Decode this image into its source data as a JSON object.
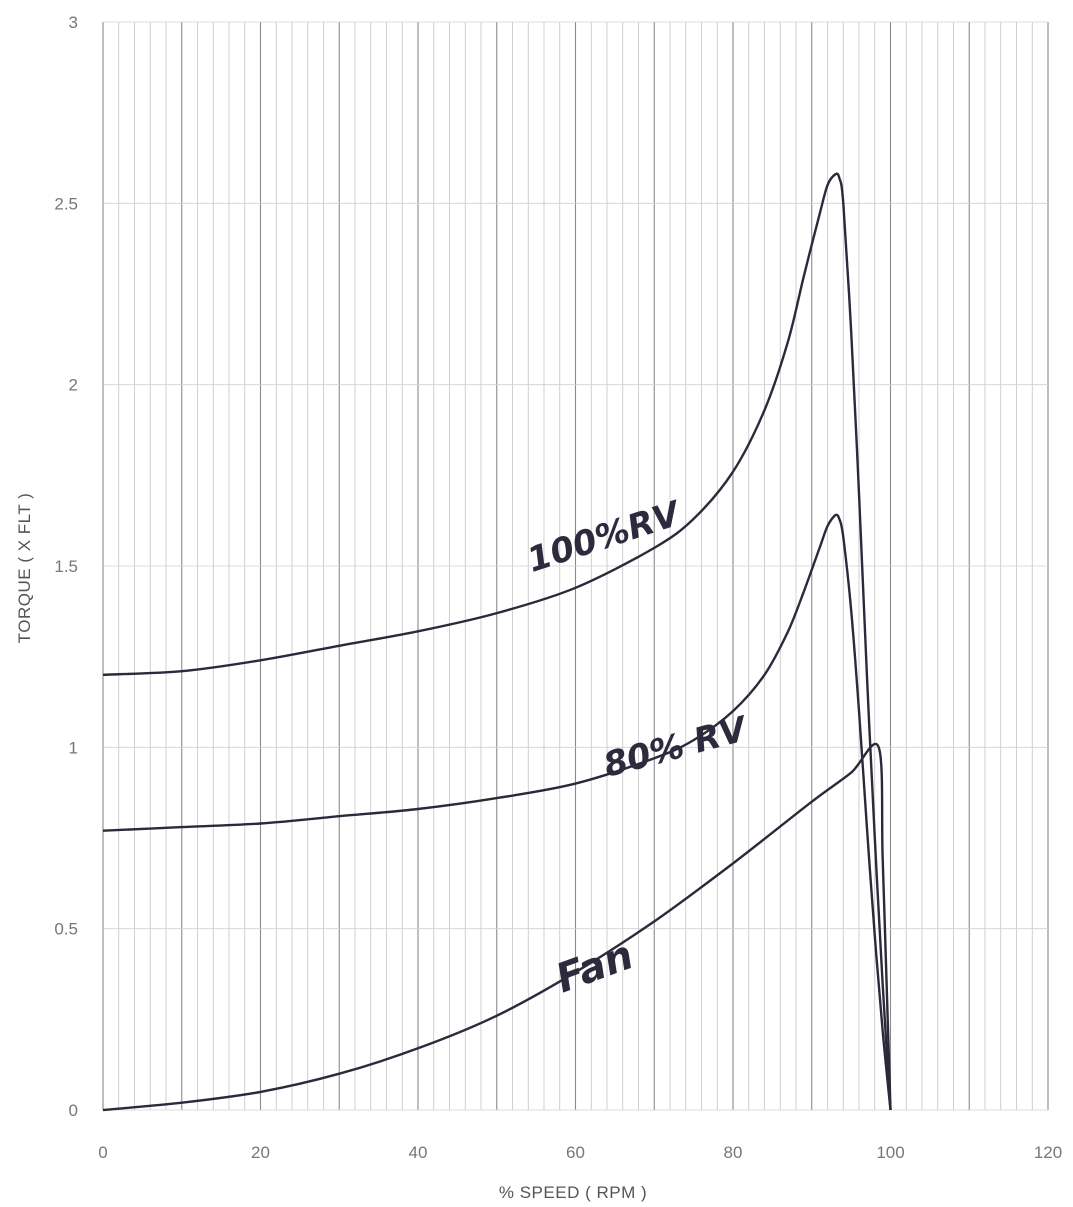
{
  "chart_data": {
    "type": "line",
    "title": "",
    "xlabel": "% SPEED ( RPM )",
    "ylabel": "TORQUE ( X FLT )",
    "xlim": [
      0,
      120
    ],
    "ylim": [
      0,
      3
    ],
    "x_ticks": [
      "0",
      "20",
      "40",
      "60",
      "80",
      "100",
      "120"
    ],
    "y_ticks": [
      "0",
      "0.5",
      "1",
      "1.5",
      "2",
      "2.5",
      "3"
    ],
    "grid": true,
    "series": [
      {
        "name": "100%RV",
        "color": "#2a2a3a",
        "x": [
          0,
          10,
          20,
          30,
          40,
          50,
          60,
          70,
          75,
          80,
          84,
          87,
          89,
          91,
          92,
          93,
          93.5,
          94,
          95,
          96,
          97,
          98,
          99,
          100
        ],
        "y": [
          1.2,
          1.21,
          1.24,
          1.28,
          1.32,
          1.37,
          1.44,
          1.55,
          1.63,
          1.76,
          1.93,
          2.12,
          2.3,
          2.47,
          2.55,
          2.58,
          2.57,
          2.5,
          2.15,
          1.7,
          1.2,
          0.75,
          0.35,
          0
        ]
      },
      {
        "name": "80% RV",
        "color": "#2a2a3a",
        "x": [
          0,
          10,
          20,
          30,
          40,
          50,
          60,
          70,
          75,
          80,
          84,
          87,
          89,
          91,
          92,
          93,
          93.5,
          94,
          95,
          96,
          97,
          98,
          99,
          100
        ],
        "y": [
          0.77,
          0.78,
          0.79,
          0.81,
          0.83,
          0.86,
          0.9,
          0.97,
          1.02,
          1.1,
          1.2,
          1.32,
          1.43,
          1.55,
          1.61,
          1.64,
          1.63,
          1.58,
          1.38,
          1.1,
          0.78,
          0.48,
          0.22,
          0
        ]
      },
      {
        "name": "Fan",
        "color": "#2a2a3a",
        "x": [
          0,
          10,
          20,
          30,
          40,
          50,
          60,
          70,
          80,
          90,
          95,
          98.5,
          99,
          99.5,
          100
        ],
        "y": [
          0,
          0.02,
          0.05,
          0.1,
          0.17,
          0.26,
          0.38,
          0.52,
          0.68,
          0.85,
          0.93,
          1.0,
          0.7,
          0.35,
          0
        ]
      }
    ],
    "annotations": [
      {
        "text": "100%RV",
        "x": 64,
        "y": 1.55,
        "rotate": -18,
        "size": 34
      },
      {
        "text": "80% RV",
        "x": 73,
        "y": 0.97,
        "rotate": -15,
        "size": 34
      },
      {
        "text": "Fan",
        "x": 63,
        "y": 0.36,
        "rotate": -20,
        "size": 40
      }
    ]
  }
}
